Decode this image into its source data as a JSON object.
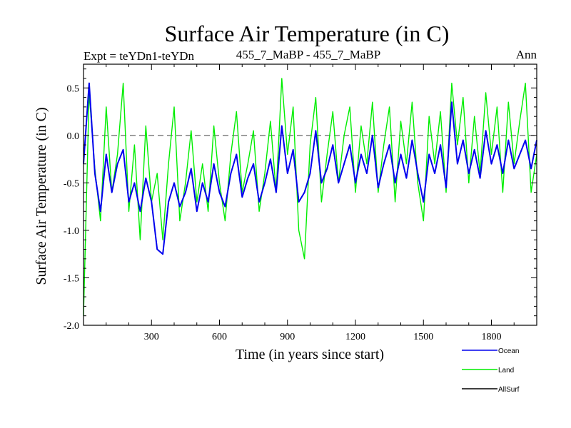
{
  "chart_data": {
    "type": "line",
    "title": "Surface Air Temperature (in C)",
    "subtitle_left": "Expt = teYDn1-teYDn",
    "subtitle_center": "455_7_MaBP - 455_7_MaBP",
    "subtitle_right": "Ann",
    "xlabel": "Time (in years since start)",
    "ylabel": "Surface Air Temperature (in C)",
    "xlim": [
      0,
      2000
    ],
    "ylim": [
      -2.0,
      0.75
    ],
    "xticks": [
      300,
      600,
      900,
      1200,
      1500,
      1800
    ],
    "xtick_labels": [
      "300",
      "600",
      "900",
      "1200",
      "1500",
      "1800"
    ],
    "yticks": [
      -2.0,
      -1.5,
      -1.0,
      -0.5,
      0.0,
      0.5
    ],
    "ytick_labels": [
      "-2.0",
      "-1.5",
      "-1.0",
      "-0.5",
      "0.0",
      "0.5"
    ],
    "reference_line": 0.0,
    "legend_position": "bottom-right, below plot",
    "series": [
      {
        "name": "Land",
        "color": "#00ee00",
        "x": [
          0,
          25,
          50,
          75,
          100,
          125,
          150,
          175,
          200,
          225,
          250,
          275,
          300,
          325,
          350,
          375,
          400,
          425,
          450,
          475,
          500,
          525,
          550,
          575,
          600,
          625,
          650,
          675,
          700,
          725,
          750,
          775,
          800,
          825,
          850,
          875,
          900,
          925,
          950,
          975,
          1000,
          1025,
          1050,
          1075,
          1100,
          1125,
          1150,
          1175,
          1200,
          1225,
          1250,
          1275,
          1300,
          1325,
          1350,
          1375,
          1400,
          1425,
          1450,
          1475,
          1500,
          1525,
          1550,
          1575,
          1600,
          1625,
          1650,
          1675,
          1700,
          1725,
          1750,
          1775,
          1800,
          1825,
          1850,
          1875,
          1900,
          1925,
          1950,
          1975,
          2000
        ],
        "values": [
          -1.9,
          0.45,
          -0.35,
          -0.9,
          0.3,
          -0.6,
          -0.2,
          0.55,
          -0.8,
          -0.1,
          -1.1,
          0.1,
          -0.7,
          -0.4,
          -1.1,
          -0.3,
          0.3,
          -0.9,
          -0.5,
          0.05,
          -0.7,
          -0.3,
          -0.8,
          0.1,
          -0.5,
          -0.9,
          -0.2,
          0.25,
          -0.6,
          -0.3,
          0.05,
          -0.8,
          -0.4,
          0.15,
          -0.6,
          0.6,
          -0.2,
          0.3,
          -1.0,
          -1.3,
          -0.1,
          0.4,
          -0.7,
          -0.2,
          0.25,
          -0.5,
          0.0,
          0.3,
          -0.6,
          0.1,
          -0.3,
          0.35,
          -0.6,
          -0.1,
          0.3,
          -0.7,
          0.15,
          -0.3,
          0.35,
          -0.5,
          -0.9,
          0.2,
          -0.3,
          0.25,
          -0.6,
          0.55,
          -0.1,
          0.4,
          -0.5,
          0.2,
          -0.4,
          0.45,
          -0.2,
          0.3,
          -0.6,
          0.35,
          -0.3,
          0.15,
          0.55,
          -0.6,
          -0.2
        ]
      },
      {
        "name": "Ocean",
        "color": "#0000ee",
        "x": [
          0,
          25,
          50,
          75,
          100,
          125,
          150,
          175,
          200,
          225,
          250,
          275,
          300,
          325,
          350,
          375,
          400,
          425,
          450,
          475,
          500,
          525,
          550,
          575,
          600,
          625,
          650,
          675,
          700,
          725,
          750,
          775,
          800,
          825,
          850,
          875,
          900,
          925,
          950,
          975,
          1000,
          1025,
          1050,
          1075,
          1100,
          1125,
          1150,
          1175,
          1200,
          1225,
          1250,
          1275,
          1300,
          1325,
          1350,
          1375,
          1400,
          1425,
          1450,
          1475,
          1500,
          1525,
          1550,
          1575,
          1600,
          1625,
          1650,
          1675,
          1700,
          1725,
          1750,
          1775,
          1800,
          1825,
          1850,
          1875,
          1900,
          1925,
          1950,
          1975,
          2000
        ],
        "values": [
          -0.3,
          0.55,
          -0.4,
          -0.8,
          -0.2,
          -0.6,
          -0.3,
          -0.15,
          -0.7,
          -0.5,
          -0.8,
          -0.45,
          -0.7,
          -1.2,
          -1.25,
          -0.7,
          -0.5,
          -0.75,
          -0.6,
          -0.35,
          -0.8,
          -0.5,
          -0.7,
          -0.3,
          -0.6,
          -0.75,
          -0.4,
          -0.2,
          -0.65,
          -0.45,
          -0.3,
          -0.7,
          -0.5,
          -0.25,
          -0.6,
          0.1,
          -0.4,
          -0.15,
          -0.7,
          -0.6,
          -0.4,
          0.05,
          -0.5,
          -0.35,
          -0.1,
          -0.5,
          -0.3,
          -0.1,
          -0.5,
          -0.2,
          -0.4,
          0.0,
          -0.55,
          -0.3,
          -0.1,
          -0.5,
          -0.2,
          -0.45,
          -0.05,
          -0.4,
          -0.7,
          -0.2,
          -0.4,
          -0.1,
          -0.55,
          0.35,
          -0.3,
          -0.05,
          -0.4,
          -0.15,
          -0.45,
          0.05,
          -0.3,
          -0.1,
          -0.4,
          -0.05,
          -0.35,
          -0.2,
          -0.05,
          -0.35,
          -0.05
        ]
      },
      {
        "name": "AllSurf",
        "color": "#000000",
        "x": [],
        "values": []
      }
    ]
  }
}
